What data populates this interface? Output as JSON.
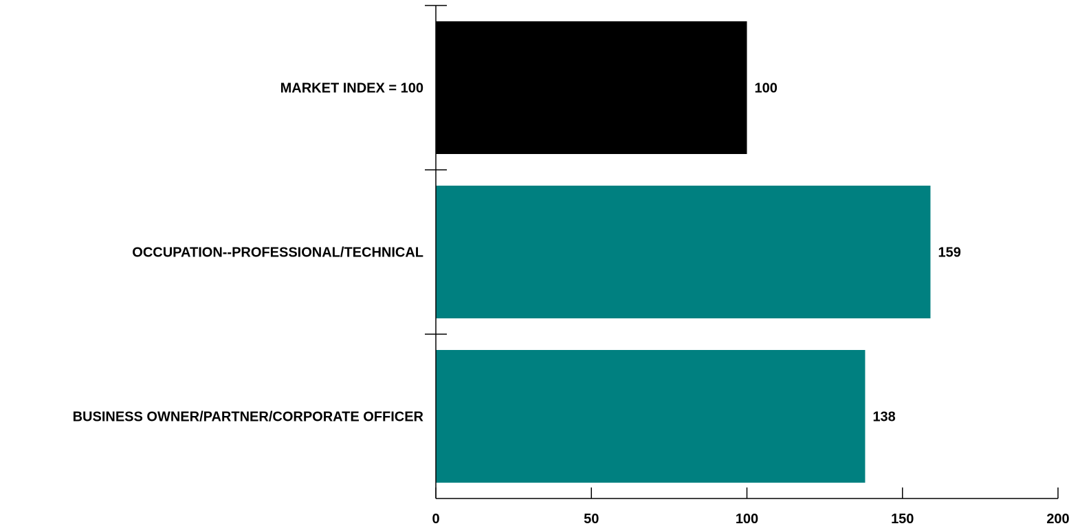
{
  "chart_data": {
    "type": "bar",
    "orientation": "horizontal",
    "categories": [
      "MARKET INDEX = 100",
      "OCCUPATION--PROFESSIONAL/TECHNICAL",
      "BUSINESS OWNER/PARTNER/CORPORATE OFFICER"
    ],
    "values": [
      100,
      159,
      138
    ],
    "value_labels": [
      "100",
      "159",
      "138"
    ],
    "bar_colors": [
      "#000000",
      "#008080",
      "#008080"
    ],
    "xlim": [
      0,
      200
    ],
    "x_ticks": [
      0,
      50,
      100,
      150,
      200
    ],
    "x_tick_labels": [
      "0",
      "50",
      "100",
      "150",
      "200"
    ],
    "grid": false,
    "legend": "none",
    "title": "",
    "xlabel": "",
    "ylabel": ""
  }
}
